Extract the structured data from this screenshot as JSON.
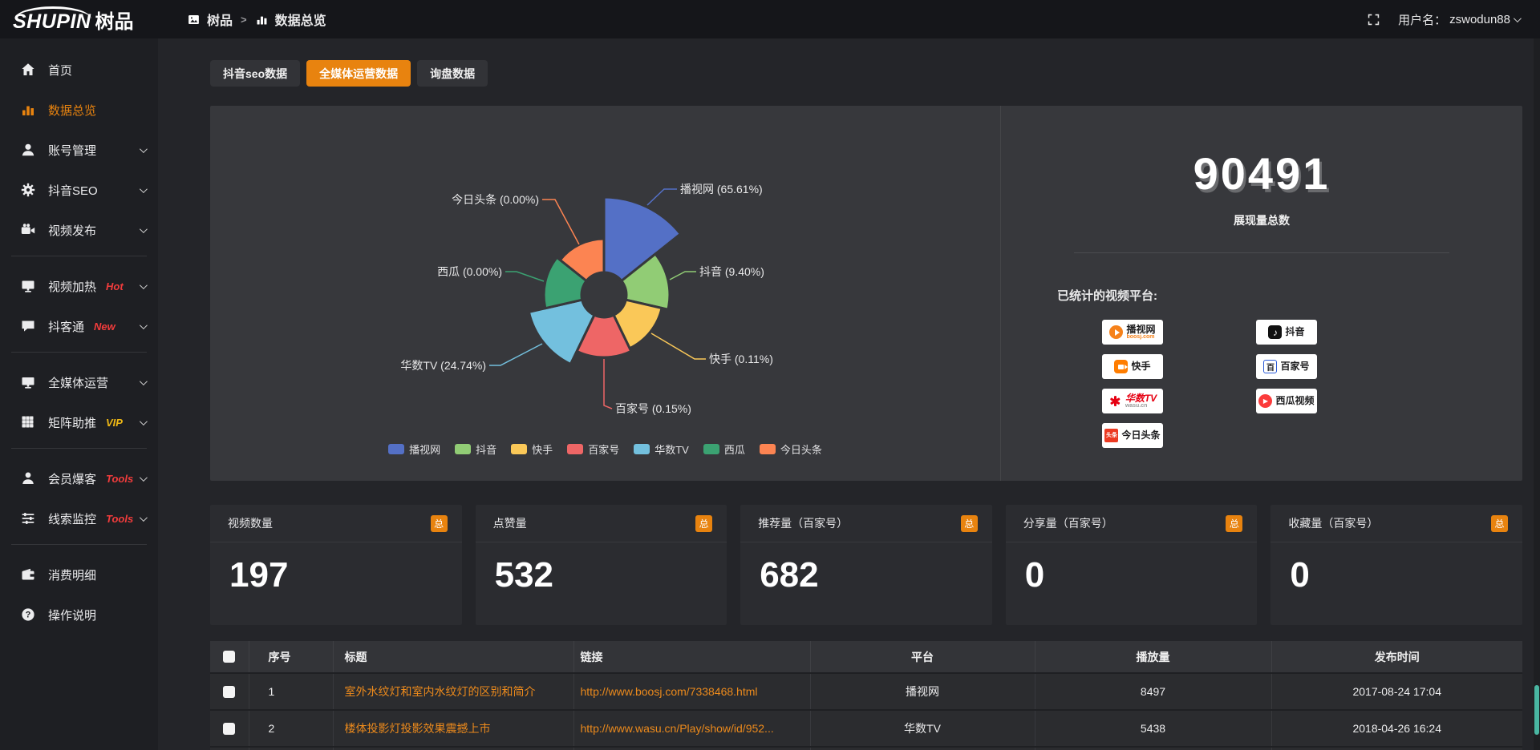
{
  "colors": {
    "accent_orange": "#e8830f",
    "link_orange": "#ec8a1c",
    "badge_red": "#f23c3c",
    "badge_yellow": "#f0b915",
    "panel_bg": "#37383c",
    "scrollbar_teal": "#49b6a2"
  },
  "topbar": {
    "logo_en": "SHUPIN",
    "logo_cn": "树品",
    "breadcrumb": {
      "root": "树品",
      "separator": ">",
      "current": "数据总览"
    },
    "fullscreen_icon": "fullscreen-icon",
    "username_label": "用户名：",
    "username": "zswodun88"
  },
  "sidebar": {
    "items": [
      {
        "key": "home",
        "label": "首页",
        "icon": "home-icon"
      },
      {
        "key": "data-overview",
        "label": "数据总览",
        "icon": "chart-bars-icon",
        "active": true
      },
      {
        "key": "account-management",
        "label": "账号管理",
        "icon": "user-icon",
        "chevron": true
      },
      {
        "key": "douyin-seo",
        "label": "抖音SEO",
        "icon": "gear-icon",
        "chevron": true
      },
      {
        "key": "video-publish",
        "label": "视频发布",
        "icon": "video-camera-icon",
        "chevron": true
      },
      {
        "divider": true
      },
      {
        "key": "video-heat",
        "label": "视频加热",
        "icon": "screen-play-icon",
        "chevron": true,
        "badge": "Hot",
        "badge_color": "red"
      },
      {
        "key": "douketong",
        "label": "抖客通",
        "icon": "chat-icon",
        "chevron": true,
        "badge": "New",
        "badge_color": "red"
      },
      {
        "divider": true
      },
      {
        "key": "media-operation",
        "label": "全媒体运营",
        "icon": "monitor-icon",
        "chevron": true
      },
      {
        "key": "matrix-boost",
        "label": "矩阵助推",
        "icon": "grid-icon",
        "chevron": true,
        "badge": "VIP",
        "badge_color": "yellow"
      },
      {
        "divider": true
      },
      {
        "key": "member-leads",
        "label": "会员爆客",
        "icon": "users-icon",
        "chevron": true,
        "badge": "Tools",
        "badge_color": "red"
      },
      {
        "key": "clue-monitor",
        "label": "线索监控",
        "icon": "sliders-icon",
        "chevron": true,
        "badge": "Tools",
        "badge_color": "red"
      },
      {
        "divider": true
      },
      {
        "key": "consumption-detail",
        "label": "消费明细",
        "icon": "wallet-icon"
      },
      {
        "key": "operation-guide",
        "label": "操作说明",
        "icon": "question-icon"
      }
    ]
  },
  "tabs": {
    "items": [
      {
        "key": "douyin-seo-data",
        "label": "抖音seo数据",
        "active": false
      },
      {
        "key": "media-operation-data",
        "label": "全媒体运营数据",
        "active": true
      },
      {
        "key": "inquiry-data",
        "label": "询盘数据",
        "active": false
      }
    ]
  },
  "chart_data": {
    "type": "pie",
    "subtype": "nightingale-rose",
    "legend_position": "bottom",
    "start_angle_deg": 0,
    "clockwise": true,
    "series": [
      {
        "key": "boosj",
        "name": "播视网",
        "percent": 65.61,
        "label_text": "播视网 (65.61%)",
        "color": "#5470c6"
      },
      {
        "key": "douyin",
        "name": "抖音",
        "percent": 9.4,
        "label_text": "抖音 (9.40%)",
        "color": "#91cc75"
      },
      {
        "key": "kuaishou",
        "name": "快手",
        "percent": 0.11,
        "label_text": "快手 (0.11%)",
        "color": "#fac858"
      },
      {
        "key": "baijiahao",
        "name": "百家号",
        "percent": 0.15,
        "label_text": "百家号 (0.15%)",
        "color": "#ee6666"
      },
      {
        "key": "wasu",
        "name": "华数TV",
        "percent": 24.74,
        "label_text": "华数TV (24.74%)",
        "color": "#73c0de"
      },
      {
        "key": "xigua",
        "name": "西瓜",
        "percent": 0.0,
        "label_text": "西瓜 (0.00%)",
        "color": "#3ba272"
      },
      {
        "key": "toutiao",
        "name": "今日头条",
        "percent": 0.0,
        "label_text": "今日头条 (0.00%)",
        "color": "#fc8452"
      }
    ],
    "legend": [
      "播视网",
      "抖音",
      "快手",
      "百家号",
      "华数TV",
      "西瓜",
      "今日头条"
    ]
  },
  "summary_panel": {
    "total_value": "90491",
    "total_label": "展现量总数",
    "platforms_label": "已统计的视频平台:",
    "platforms_left": [
      {
        "key": "boosj",
        "name": "播视网",
        "sub": "boosj.com",
        "icon": "boosj-icon"
      },
      {
        "key": "kuaishou",
        "name": "快手",
        "icon": "kuaishou-icon"
      },
      {
        "key": "wasu",
        "name": "华数TV",
        "sub": "wasu.cn",
        "icon": "wasu-icon"
      },
      {
        "key": "toutiao",
        "name": "今日头条",
        "icon": "toutiao-icon"
      }
    ],
    "platforms_right": [
      {
        "key": "douyin",
        "name": "抖音",
        "icon": "douyin-icon"
      },
      {
        "key": "baijiahao",
        "name": "百家号",
        "icon": "baijiahao-icon"
      },
      {
        "key": "xigua",
        "name": "西瓜视频",
        "icon": "xigua-icon"
      }
    ]
  },
  "stat_cards": [
    {
      "key": "video-count",
      "title": "视频数量",
      "badge": "总",
      "value": "197"
    },
    {
      "key": "like-count",
      "title": "点赞量",
      "badge": "总",
      "value": "532"
    },
    {
      "key": "recommend-count",
      "title": "推荐量（百家号）",
      "badge": "总",
      "value": "682"
    },
    {
      "key": "share-count",
      "title": "分享量（百家号）",
      "badge": "总",
      "value": "0"
    },
    {
      "key": "favorite-count",
      "title": "收藏量（百家号）",
      "badge": "总",
      "value": "0"
    }
  ],
  "table": {
    "headers": [
      "序号",
      "标题",
      "链接",
      "平台",
      "播放量",
      "发布时间"
    ],
    "rows": [
      {
        "cells": [
          "1",
          "室外水纹灯和室内水纹灯的区别和简介",
          "http://www.boosj.com/7338468.html",
          "播视网",
          "8497",
          "2017-08-24 17:04"
        ]
      },
      {
        "cells": [
          "2",
          "楼体投影灯投影效果震撼上市",
          "http://www.wasu.cn/Play/show/id/952...",
          "华数TV",
          "5438",
          "2018-04-26 16:24"
        ]
      }
    ],
    "has_partial_next_row": true
  }
}
